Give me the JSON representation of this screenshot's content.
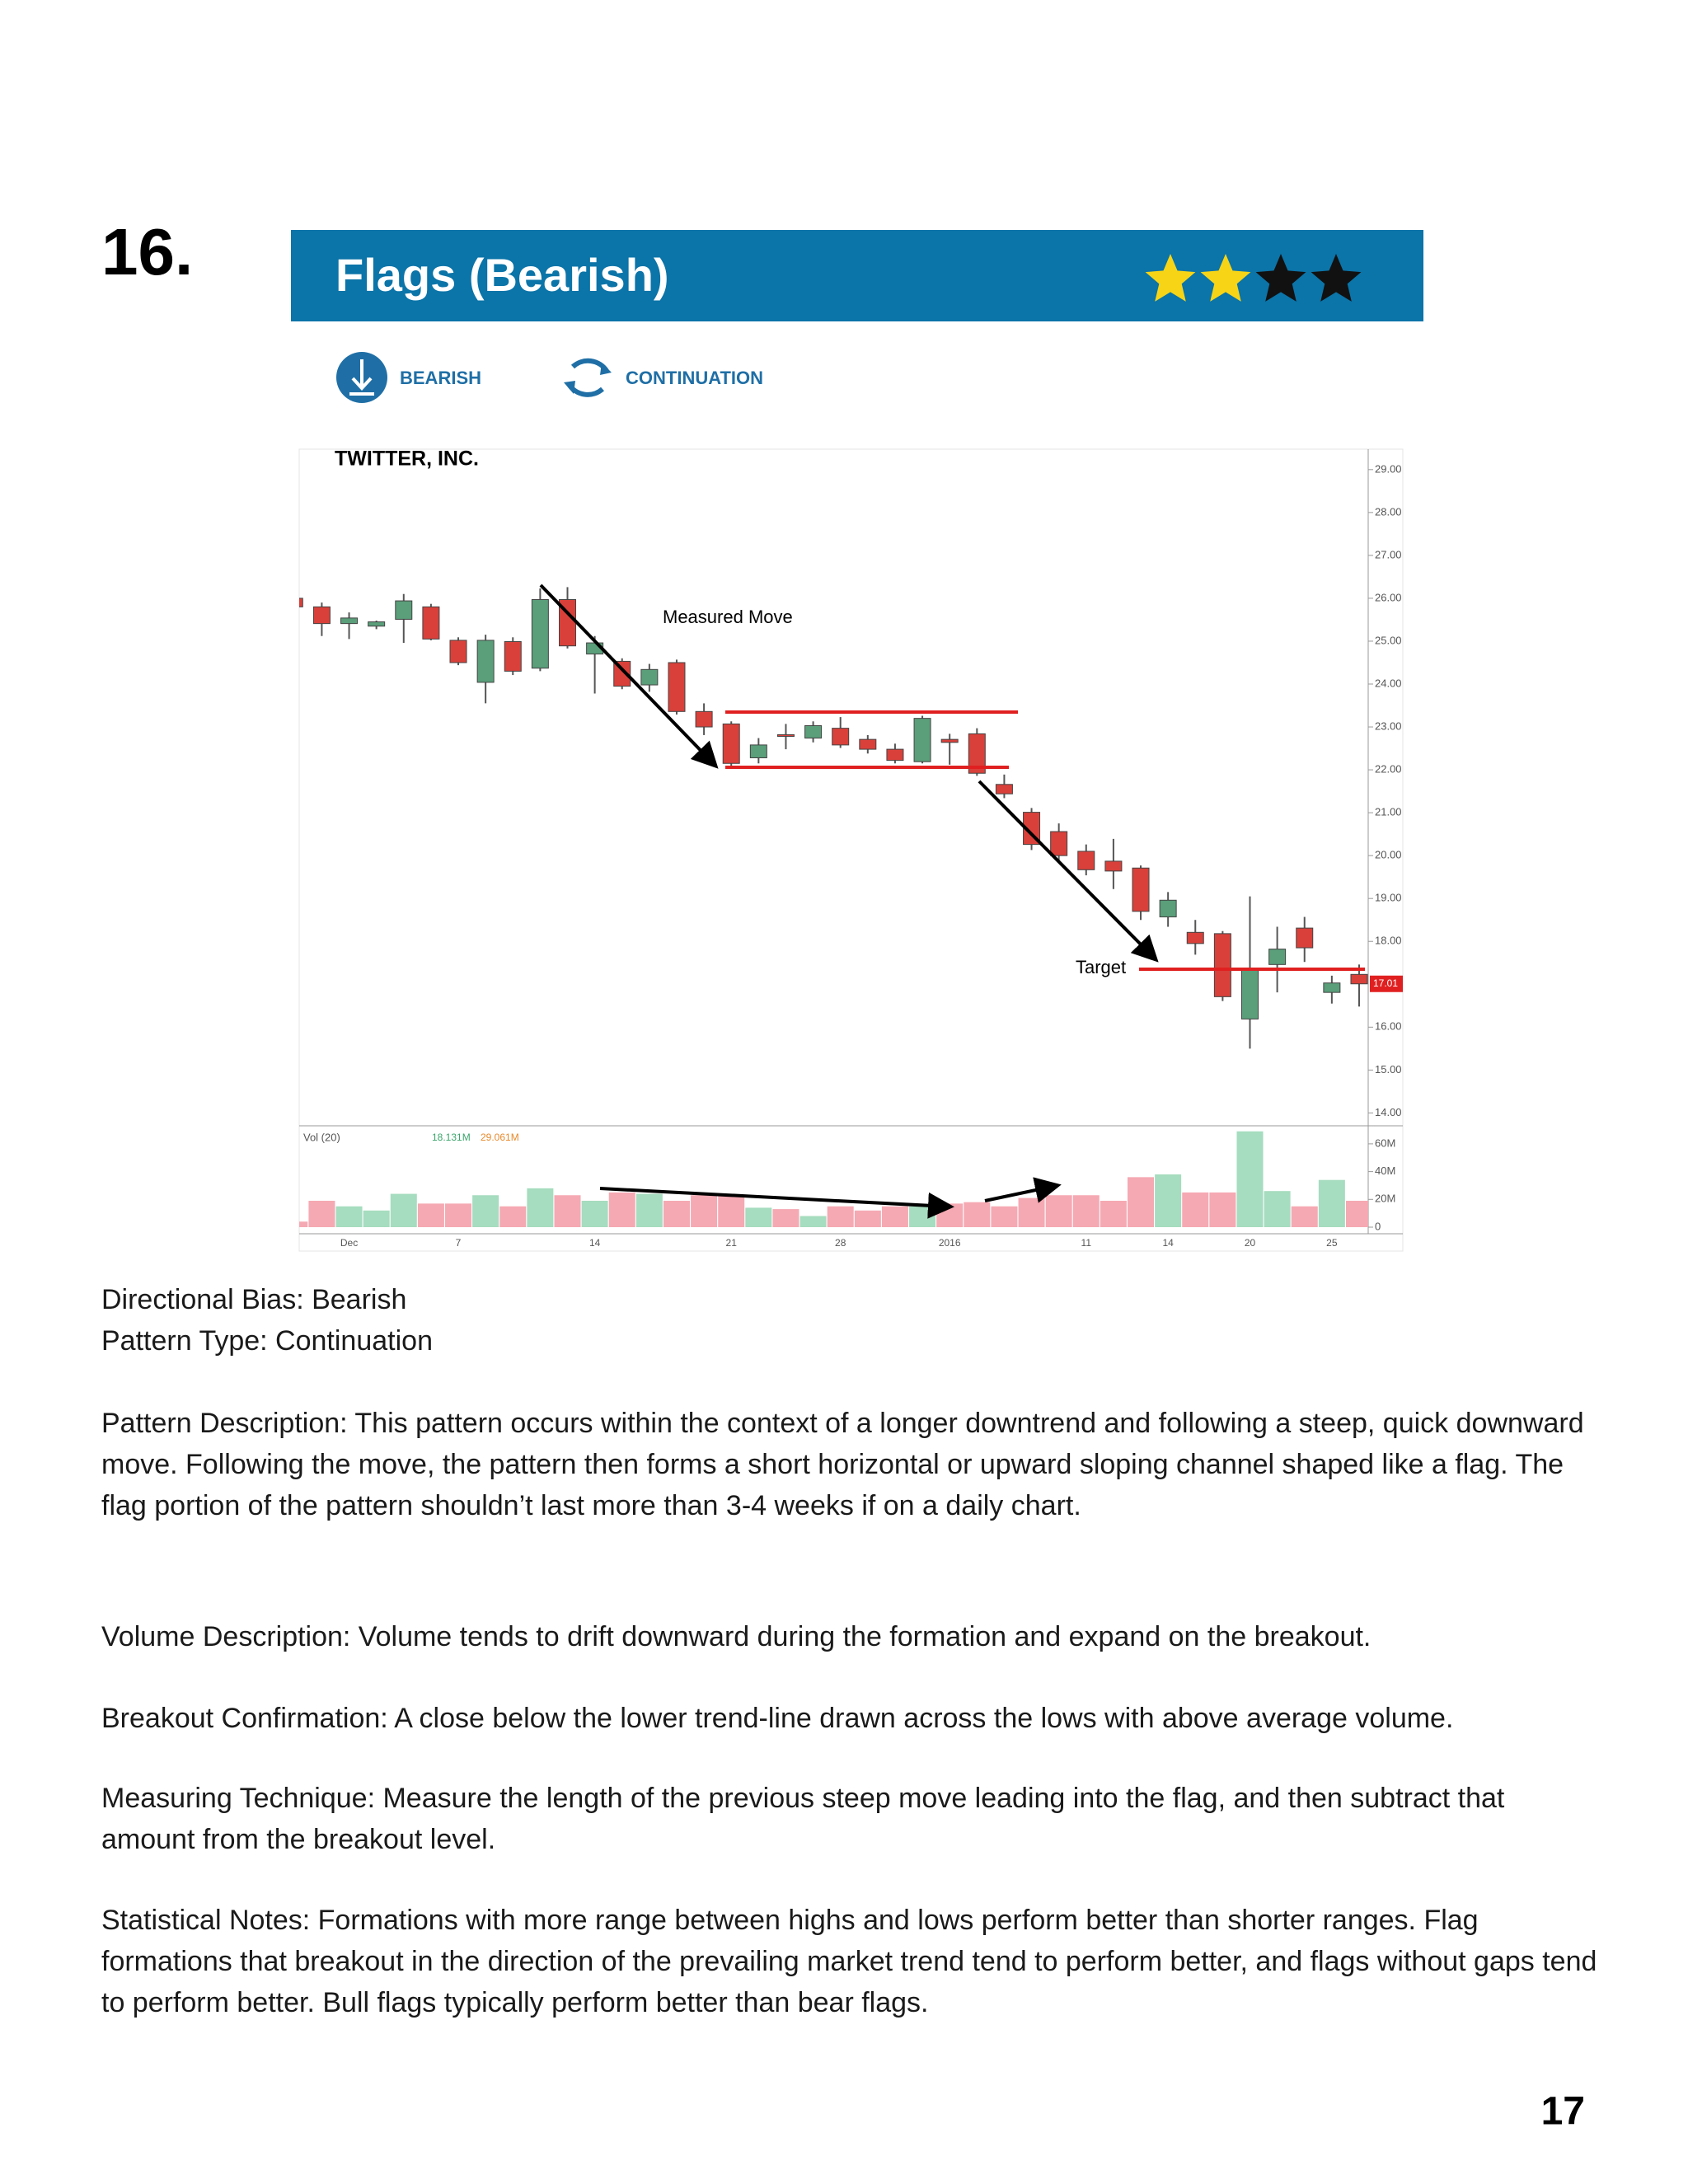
{
  "item_number": "16.",
  "header": {
    "title": "Flags (Bearish)",
    "rating": 2,
    "rating_max": 4
  },
  "tags": [
    "BEARISH",
    "CONTINUATION"
  ],
  "chart_data": {
    "type": "candlestick",
    "title": "TWITTER, INC.",
    "categories": [
      null,
      null,
      "Dec",
      null,
      null,
      null,
      "7",
      null,
      null,
      null,
      null,
      "14",
      null,
      null,
      null,
      null,
      "21",
      null,
      null,
      null,
      "28",
      null,
      null,
      null,
      "2016",
      null,
      null,
      null,
      null,
      "11",
      null,
      null,
      "14",
      null,
      null,
      "20",
      null,
      null,
      "25",
      null
    ],
    "open": [
      26.0,
      25.8,
      25.41,
      25.35,
      25.51,
      25.8,
      25.02,
      24.04,
      24.99,
      24.37,
      25.97,
      24.7,
      24.53,
      23.98,
      24.5,
      23.36,
      23.07,
      22.28,
      22.82,
      22.74,
      22.97,
      22.71,
      22.48,
      22.19,
      22.71,
      22.84,
      21.66,
      21.01,
      20.56,
      20.1,
      19.87,
      19.71,
      18.57,
      18.21,
      18.18,
      16.19,
      17.46,
      18.31,
      16.81,
      17.23
    ],
    "high": [
      26.0,
      25.9,
      25.67,
      25.48,
      26.1,
      25.87,
      25.09,
      25.15,
      25.09,
      26.23,
      26.26,
      25.12,
      24.6,
      24.47,
      24.57,
      23.55,
      23.13,
      22.74,
      23.07,
      23.13,
      23.23,
      22.81,
      22.61,
      23.26,
      22.84,
      22.97,
      21.89,
      21.11,
      20.75,
      20.26,
      20.39,
      19.77,
      19.15,
      18.5,
      18.24,
      19.05,
      18.34,
      18.57,
      17.2,
      17.46
    ],
    "low": [
      25.8,
      25.12,
      25.05,
      25.28,
      24.96,
      25.02,
      24.44,
      23.55,
      24.21,
      24.3,
      24.83,
      23.78,
      23.88,
      23.82,
      23.29,
      22.81,
      22.02,
      22.15,
      22.48,
      22.64,
      22.51,
      22.38,
      22.15,
      22.15,
      22.12,
      21.86,
      21.34,
      20.13,
      19.87,
      19.54,
      19.22,
      18.5,
      18.34,
      17.69,
      16.61,
      15.5,
      16.81,
      17.52,
      16.55,
      16.48
    ],
    "close": [
      25.8,
      25.41,
      25.54,
      25.45,
      25.94,
      25.05,
      24.5,
      25.02,
      24.3,
      25.97,
      24.89,
      24.96,
      23.95,
      24.34,
      23.36,
      23.0,
      22.15,
      22.58,
      22.78,
      23.03,
      22.58,
      22.48,
      22.22,
      23.2,
      22.64,
      21.92,
      21.44,
      20.26,
      20.0,
      19.67,
      19.64,
      18.7,
      18.96,
      17.95,
      16.71,
      17.36,
      17.82,
      17.85,
      17.03,
      17.01
    ],
    "volume": [
      4,
      19,
      15,
      12,
      24,
      17,
      17,
      23,
      15,
      28,
      23,
      19,
      25,
      24,
      19,
      23,
      23,
      14,
      13,
      8,
      15,
      12,
      15,
      15,
      17,
      18,
      15,
      21,
      23,
      23,
      19,
      36,
      38,
      25,
      25,
      69,
      26,
      15,
      34,
      19
    ],
    "up_color": "#5a9e7a",
    "down_color": "#d9403a",
    "volume_up_color": "#a6dcbf",
    "volume_down_color": "#f5a9b3",
    "ylim": [
      13.7,
      29.4
    ],
    "yticks": [
      {
        "value": 29,
        "label": "29.00"
      },
      {
        "value": 28,
        "label": "28.00"
      },
      {
        "value": 27,
        "label": "27.00"
      },
      {
        "value": 26,
        "label": "26.00"
      },
      {
        "value": 25,
        "label": "25.00"
      },
      {
        "value": 24,
        "label": "24.00"
      },
      {
        "value": 23,
        "label": "23.00"
      },
      {
        "value": 22,
        "label": "22.00"
      },
      {
        "value": 21,
        "label": "21.00"
      },
      {
        "value": 20,
        "label": "20.00"
      },
      {
        "value": 19,
        "label": "19.00"
      },
      {
        "value": 18,
        "label": "18.00"
      },
      {
        "value": 16,
        "label": "16.00"
      },
      {
        "value": 15,
        "label": "15.00"
      },
      {
        "value": 14,
        "label": "14.00"
      }
    ],
    "volume_ylim": [
      0,
      73
    ],
    "volume_yticks": [
      {
        "value": 60,
        "label": "60M"
      },
      {
        "value": 40,
        "label": "40M"
      },
      {
        "value": 20,
        "label": "20M"
      },
      0
    ],
    "volume_label": "Vol (20)",
    "volume_stats": [
      {
        "value": 18.131,
        "label": "18.131M",
        "color": "#3aa56b"
      },
      {
        "value": 29.061,
        "label": "29.061M",
        "color": "#e8892b"
      }
    ],
    "last_price": {
      "value": 17.01,
      "label": "17.01"
    },
    "annotations": [
      "Measured Move",
      "Target"
    ]
  },
  "paragraphs": [
    "Directional Bias: Bearish",
    "Pattern Type: Continuation",
    "Pattern Description: This pattern occurs within the context of a longer downtrend and following a steep, quick downward move. Following the move, the pattern then forms a short horizontal or upward sloping channel shaped like a flag. The flag portion of the pattern shouldn’t last more than 3-4 weeks if on a daily chart.",
    "Volume Description: Volume tends to drift downward during the formation and expand on the breakout.",
    "Breakout Confirmation: A close below the lower trend-line drawn across the lows with above average volume.",
    "Measuring Technique: Measure the length of the previous steep move leading into the flag, and then subtract that amount from the breakout level.",
    "Statistical Notes: Formations with more range between highs and lows perform better than shorter ranges. Flag formations that breakout in the direction of the prevailing market trend tend to perform better, and flags without gaps tend to perform better. Bull flags typically perform better than bear flags."
  ],
  "page_number": 17
}
